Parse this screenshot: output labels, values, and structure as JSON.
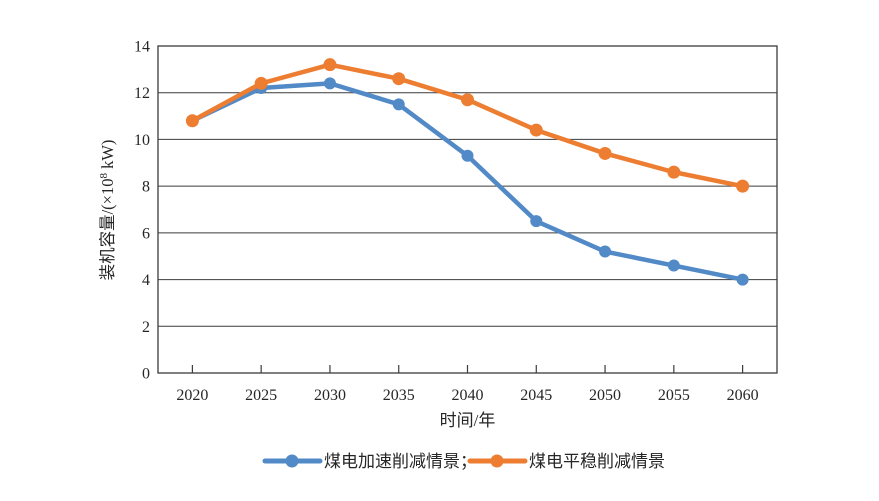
{
  "chart_data": {
    "type": "line",
    "title": "",
    "categories": [
      "2020",
      "2025",
      "2030",
      "2035",
      "2040",
      "2045",
      "2050",
      "2055",
      "2060"
    ],
    "series": [
      {
        "name": "煤电加速削减情景",
        "legend_label": "煤电加速削减情景；",
        "color": "#5289C7",
        "values": [
          10.8,
          12.2,
          12.4,
          11.5,
          9.3,
          6.5,
          5.2,
          4.6,
          4.0
        ]
      },
      {
        "name": "煤电平稳削减情景",
        "legend_label": "煤电平稳削减情景",
        "color": "#ED7D31",
        "values": [
          10.8,
          12.4,
          13.2,
          12.6,
          11.7,
          10.4,
          9.4,
          8.6,
          8.0
        ]
      }
    ],
    "xlabel": "时间/年",
    "ylabel": "装机容量/(×10⁸ kW)",
    "ylabel_parts": {
      "pre": "装机容量/(×10",
      "sup": "8",
      "post": " kW)"
    },
    "ylim": [
      0,
      14
    ],
    "ytick_step": 2,
    "yticks": [
      "0",
      "2",
      "4",
      "6",
      "8",
      "10",
      "12",
      "14"
    ],
    "grid": "horizontal",
    "legend_position": "bottom",
    "axis_color": "#3B3B3B",
    "text_color": "#262626",
    "background_color": "#FFFFFF"
  }
}
